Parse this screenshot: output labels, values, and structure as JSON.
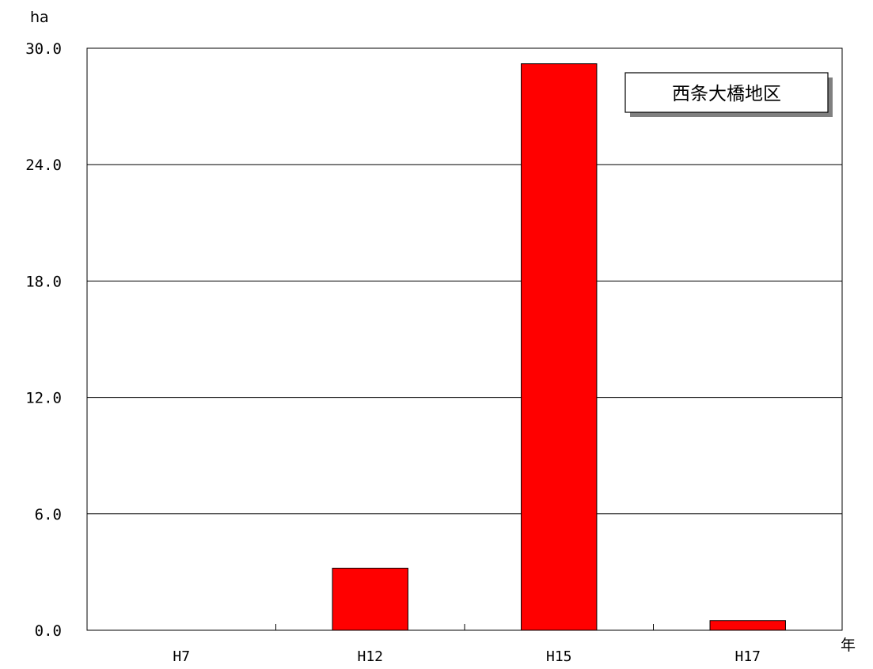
{
  "chart_data": {
    "type": "bar",
    "categories": [
      "H7",
      "H12",
      "H15",
      "H17"
    ],
    "series": [
      {
        "name": "西条大橋地区",
        "values": [
          0,
          3.2,
          29.2,
          0.5
        ],
        "color": "#ff0000"
      }
    ],
    "ylabel": "ha",
    "xlabel": "年",
    "ylim": [
      0,
      30
    ],
    "yticks": [
      0,
      6,
      12,
      18,
      24,
      30
    ],
    "ytick_labels": [
      "0.0",
      "6.0",
      "12.0",
      "18.0",
      "24.0",
      "30.0"
    ],
    "grid": true,
    "legend_position": "top-right"
  }
}
